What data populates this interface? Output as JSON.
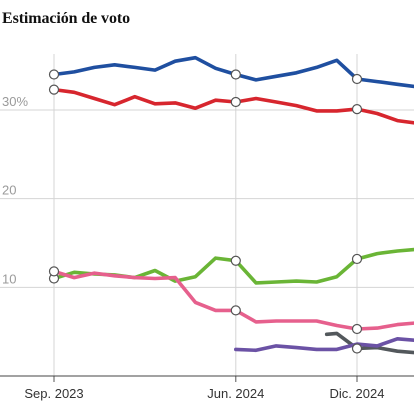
{
  "chart_data": {
    "type": "line",
    "title": "Estimación de voto",
    "xlabel": "",
    "ylabel": "",
    "ylim": [
      0,
      40
    ],
    "y_ticks": [
      {
        "value": 10,
        "label": "10"
      },
      {
        "value": 20,
        "label": "20"
      },
      {
        "value": 30,
        "label": "30%"
      }
    ],
    "x_ticks": [
      {
        "value": 0,
        "label": "Sep. 2023"
      },
      {
        "value": 9,
        "label": "Jun. 2024"
      },
      {
        "value": 15,
        "label": "Dic. 2024"
      }
    ],
    "grid": "horizontal and vertical",
    "series": [
      {
        "color": "#1f4fa0",
        "x": [
          0,
          1,
          2,
          3,
          4,
          5,
          6,
          7,
          8,
          9,
          10,
          11,
          12,
          13,
          14,
          15,
          16,
          17,
          18
        ],
        "y": [
          34.0,
          34.3,
          34.8,
          35.1,
          34.8,
          34.5,
          35.5,
          35.9,
          34.7,
          34.0,
          33.4,
          33.8,
          34.2,
          34.8,
          35.6,
          33.5,
          33.2,
          32.9,
          32.6
        ],
        "markers": [
          0,
          9,
          15
        ]
      },
      {
        "color": "#d7262e",
        "x": [
          0,
          1,
          2,
          3,
          4,
          5,
          6,
          7,
          8,
          9,
          10,
          11,
          12,
          13,
          14,
          15,
          16,
          17,
          18
        ],
        "y": [
          32.3,
          32.0,
          31.3,
          30.6,
          31.5,
          30.7,
          30.8,
          30.2,
          31.1,
          30.9,
          31.3,
          30.9,
          30.5,
          29.9,
          29.9,
          30.1,
          29.6,
          28.8,
          28.5
        ],
        "markers": [
          0,
          9,
          15
        ]
      },
      {
        "color": "#6ab536",
        "x": [
          0,
          1,
          2,
          3,
          4,
          5,
          6,
          7,
          8,
          9,
          10,
          11,
          12,
          13,
          14,
          15,
          16,
          17,
          18
        ],
        "y": [
          11.0,
          11.7,
          11.5,
          11.4,
          11.1,
          11.9,
          10.7,
          11.2,
          13.3,
          13.0,
          10.5,
          10.6,
          10.7,
          10.6,
          11.2,
          13.2,
          13.8,
          14.1,
          14.3
        ],
        "markers": [
          0,
          9,
          15
        ]
      },
      {
        "color": "#e6608d",
        "x": [
          0,
          1,
          2,
          3,
          4,
          5,
          6,
          7,
          8,
          9,
          10,
          11,
          12,
          13,
          14,
          15,
          16,
          17,
          18
        ],
        "y": [
          11.8,
          11.1,
          11.6,
          11.3,
          11.1,
          11.0,
          11.1,
          8.3,
          7.4,
          7.4,
          6.1,
          6.2,
          6.2,
          6.2,
          5.7,
          5.3,
          5.4,
          5.8,
          6.0
        ],
        "markers": [
          0,
          9,
          15
        ]
      },
      {
        "color": "#53585c",
        "x": [
          13.5,
          14,
          15,
          16,
          17,
          18
        ],
        "y": [
          4.7,
          4.8,
          3.1,
          3.2,
          2.8,
          2.6
        ],
        "markers": [
          15
        ]
      },
      {
        "color": "#6b52a5",
        "x": [
          9,
          10,
          11,
          12,
          13,
          14,
          15,
          16,
          17,
          18
        ],
        "y": [
          3.0,
          2.9,
          3.4,
          3.2,
          3.0,
          3.0,
          3.6,
          3.4,
          4.2,
          4.0
        ],
        "markers": []
      }
    ]
  }
}
